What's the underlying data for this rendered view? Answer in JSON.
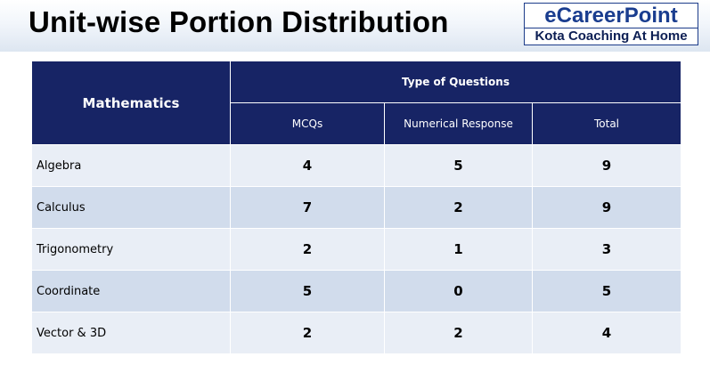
{
  "header": {
    "title": "Unit-wise Portion Distribution"
  },
  "logo": {
    "name": "eCareerPoint",
    "tagline": "Kota Coaching At Home"
  },
  "table": {
    "subject": "Mathematics",
    "group_header": "Type of Questions",
    "columns": [
      "MCQs",
      "Numerical Response",
      "Total"
    ],
    "rows": [
      {
        "unit": "Algebra",
        "mcqs": "4",
        "numerical": "5",
        "total": "9"
      },
      {
        "unit": "Calculus",
        "mcqs": "7",
        "numerical": "2",
        "total": "9"
      },
      {
        "unit": "Trigonometry",
        "mcqs": "2",
        "numerical": "1",
        "total": "3"
      },
      {
        "unit": "Coordinate",
        "mcqs": "5",
        "numerical": "0",
        "total": "5"
      },
      {
        "unit": "Vector & 3D",
        "mcqs": "2",
        "numerical": "2",
        "total": "4"
      }
    ]
  },
  "colors": {
    "header_bg": "#172465",
    "row_light": "#e9eef6",
    "row_dark": "#d1dcec",
    "logo_blue": "#1a3d8f"
  }
}
